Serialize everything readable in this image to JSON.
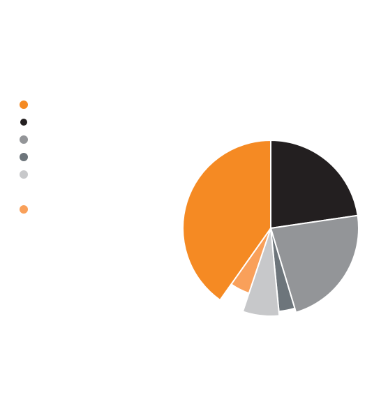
{
  "chart_data": {
    "type": "pie",
    "start_angle_deg": 0,
    "direction": "clockwise",
    "legend": {
      "placement": "left"
    },
    "slices": [
      {
        "value": 22,
        "color": "#231f20",
        "legend_key": true
      },
      {
        "value": 22,
        "color": "#939598",
        "legend_key": true
      },
      {
        "value": 3,
        "color": "#6d757b",
        "legend_key": true
      },
      {
        "value": 6.5,
        "color": "#c7c8ca",
        "legend_key": true
      },
      {
        "value": 4.5,
        "color": "#f9a05a",
        "legend_key": true
      },
      {
        "value": 39,
        "color": "#f58a23",
        "legend_key": true
      }
    ],
    "slice_radius_scale": [
      1.0,
      1.0,
      0.95,
      1.0,
      0.78,
      1.0
    ],
    "legend_order": [
      5,
      0,
      1,
      2,
      3,
      4
    ]
  }
}
